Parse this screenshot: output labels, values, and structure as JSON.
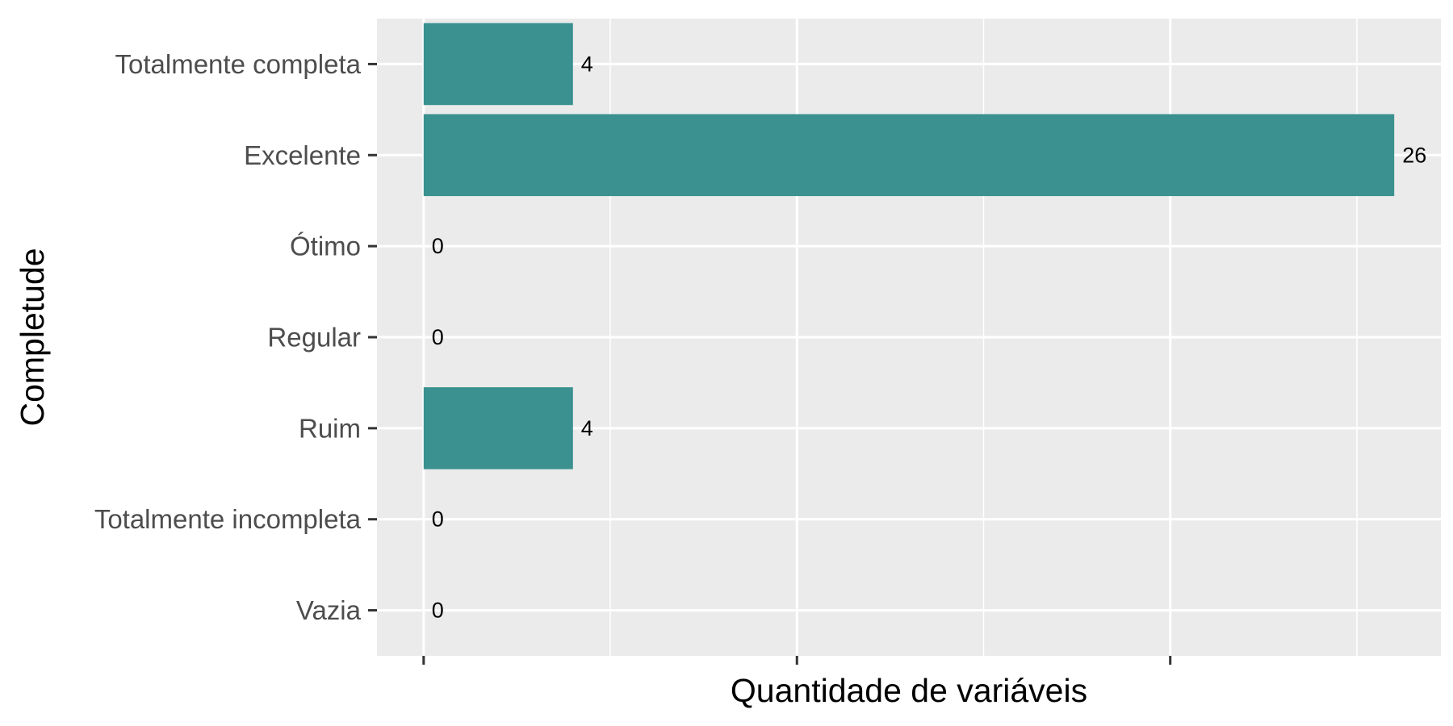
{
  "chart_data": {
    "type": "bar",
    "orientation": "horizontal",
    "categories": [
      "Totalmente completa",
      "Excelente",
      "Ótimo",
      "Regular",
      "Ruim",
      "Totalmente incompleta",
      "Vazia"
    ],
    "values": [
      4,
      26,
      0,
      0,
      4,
      0,
      0
    ],
    "xlabel": "Quantidade de variáveis",
    "ylabel": "Completude",
    "xlim": [
      -1.25,
      27.25
    ],
    "grid": true,
    "x_tick_labels_shown": false,
    "colors": {
      "bar": "#3a918f",
      "panel": "#ebebeb",
      "grid": "#ffffff",
      "tick": "#333333",
      "label": "#4d4d4d"
    }
  }
}
